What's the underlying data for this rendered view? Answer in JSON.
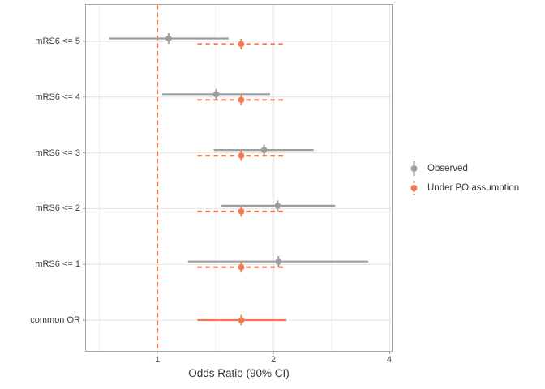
{
  "chart_data": {
    "type": "forest-pointrange",
    "title": "",
    "x_axis": {
      "label": "Odds Ratio (90% CI)",
      "scale": "log2",
      "domain": [
        0.653,
        4.05
      ],
      "ticks": [
        1,
        2,
        4
      ],
      "tick_labels": [
        "1",
        "2",
        "4"
      ],
      "minor_ticks": [
        0.707,
        1.414,
        2.828
      ],
      "reference_line_x": 1
    },
    "y_axis": {
      "categories": [
        "mRS6 <= 5",
        "mRS6 <= 4",
        "mRS6 <= 3",
        "mRS6 <= 2",
        "mRS6 <= 1",
        "common OR"
      ]
    },
    "categories": [
      "mRS6 <= 5",
      "mRS6 <= 4",
      "mRS6 <= 3",
      "mRS6 <= 2",
      "mRS6 <= 1",
      "common OR"
    ],
    "series": [
      {
        "name": "Observed",
        "color": "#9e9e9e",
        "line_style": "solid",
        "values": [
          {
            "or": 1.07,
            "lo": 0.75,
            "hi": 1.53
          },
          {
            "or": 1.42,
            "lo": 1.03,
            "hi": 1.96
          },
          {
            "or": 1.89,
            "lo": 1.4,
            "hi": 2.54
          },
          {
            "or": 2.05,
            "lo": 1.46,
            "hi": 2.89
          },
          {
            "or": 2.06,
            "lo": 1.2,
            "hi": 3.52
          },
          null
        ]
      },
      {
        "name": "Under PO assumption",
        "color": "#f47950",
        "line_style": "dashed",
        "values": [
          {
            "or": 1.65,
            "lo": 1.27,
            "hi": 2.16,
            "dashed": true
          },
          {
            "or": 1.65,
            "lo": 1.27,
            "hi": 2.16,
            "dashed": true
          },
          {
            "or": 1.65,
            "lo": 1.27,
            "hi": 2.16,
            "dashed": true
          },
          {
            "or": 1.65,
            "lo": 1.27,
            "hi": 2.16,
            "dashed": true
          },
          {
            "or": 1.65,
            "lo": 1.27,
            "hi": 2.16,
            "dashed": true
          },
          {
            "or": 1.65,
            "lo": 1.27,
            "hi": 2.16,
            "dashed": false
          }
        ]
      }
    ],
    "legend": {
      "position": "right",
      "items": [
        {
          "label": "Observed",
          "color": "#9e9e9e",
          "style": "solid"
        },
        {
          "label": "Under PO assumption",
          "color": "#f47950",
          "style": "dashed"
        }
      ]
    },
    "grid": {
      "major_color": "#e3e3e3",
      "minor_color": "#efefef",
      "panel_border_color": "#a8a8a8"
    },
    "colors": {
      "reference_line": "#f4703f",
      "background": "#ffffff",
      "tick_mark": "#999999"
    }
  }
}
